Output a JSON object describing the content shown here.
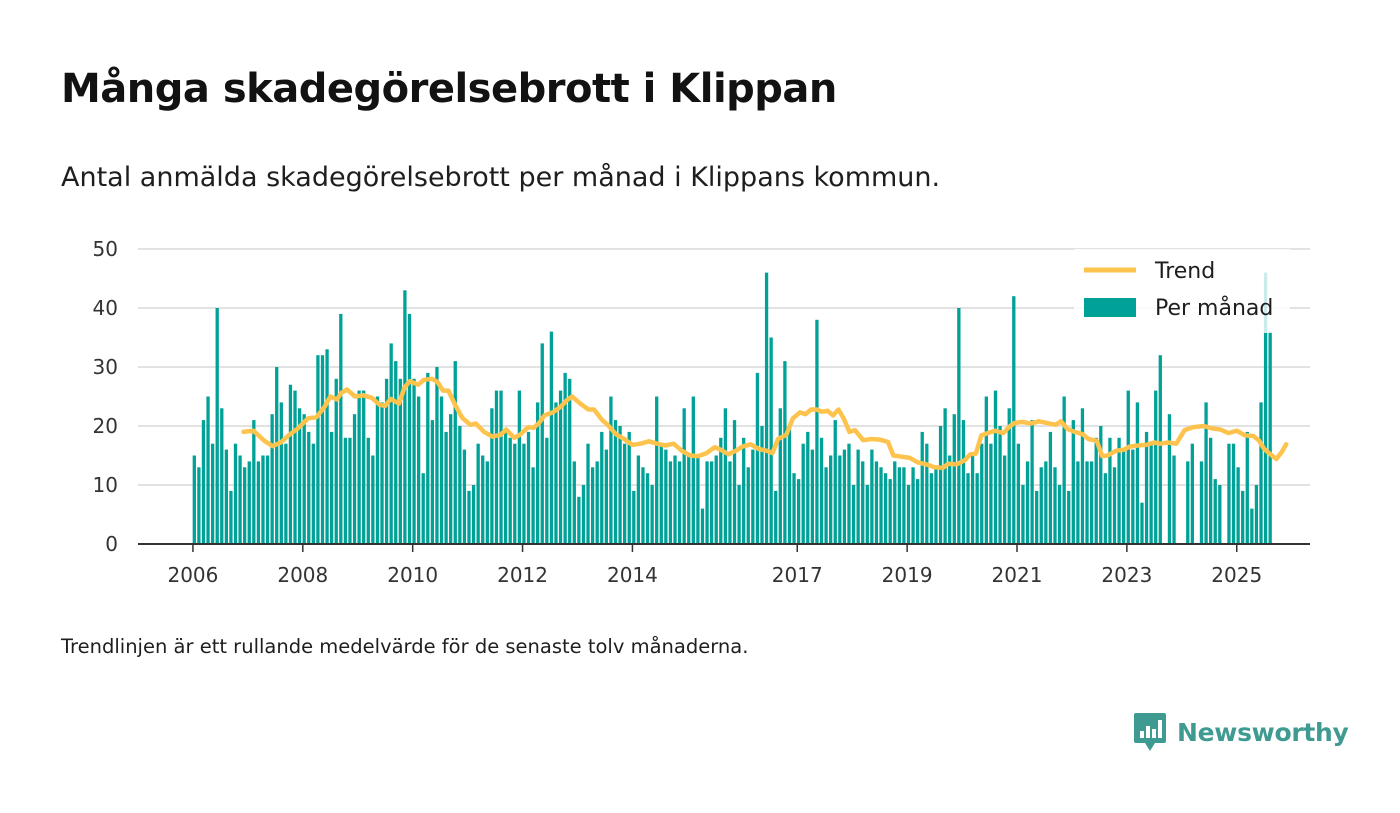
{
  "header": {
    "title": "Många skadegörelsebrott i Klippan",
    "subtitle": "Antal anmälda skadegörelsebrott per månad i Klippans kommun."
  },
  "footnote": "Trendlinjen är ett rullande medelvärde för de senaste tolv månaderna.",
  "brand": {
    "name": "Newsworthy",
    "color": "#3f9b92"
  },
  "chart_data": {
    "type": "bar",
    "colors": {
      "bars": "#00a197",
      "trend": "#fdc34d",
      "grid": "#d9d9d9",
      "axis": "#333333"
    },
    "ylim": [
      0,
      50
    ],
    "y_ticks": [
      "0",
      "10",
      "20",
      "30",
      "40",
      "50"
    ],
    "x_ticks": [
      {
        "label": "2006",
        "year": 2006
      },
      {
        "label": "2008",
        "year": 2008
      },
      {
        "label": "2010",
        "year": 2010
      },
      {
        "label": "2012",
        "year": 2012
      },
      {
        "label": "2014",
        "year": 2014
      },
      {
        "label": "2017",
        "year": 2017
      },
      {
        "label": "2019",
        "year": 2019
      },
      {
        "label": "2021",
        "year": 2021
      },
      {
        "label": "2023",
        "year": 2023
      },
      {
        "label": "2025",
        "year": 2025
      }
    ],
    "xlim": [
      "2005-01",
      "2026-05"
    ],
    "start": "2006-01",
    "legend": {
      "position": "top-right",
      "trend_label": "Trend",
      "bars_label": "Per månad"
    },
    "bars": [
      15,
      13,
      21,
      25,
      17,
      40,
      23,
      16,
      9,
      17,
      15,
      13,
      14,
      21,
      14,
      15,
      15,
      22,
      30,
      24,
      17,
      27,
      26,
      23,
      22,
      19,
      17,
      32,
      32,
      33,
      19,
      28,
      39,
      18,
      18,
      22,
      26,
      26,
      18,
      15,
      25,
      24,
      28,
      34,
      31,
      28,
      43,
      39,
      28,
      25,
      12,
      29,
      21,
      30,
      25,
      19,
      22,
      31,
      20,
      16,
      9,
      10,
      17,
      15,
      14,
      23,
      26,
      26,
      19,
      18,
      17,
      26,
      17,
      19,
      13,
      24,
      34,
      18,
      36,
      24,
      26,
      29,
      28,
      14,
      8,
      10,
      17,
      13,
      14,
      19,
      16,
      25,
      21,
      20,
      17,
      19,
      9,
      15,
      13,
      12,
      10,
      25,
      17,
      16,
      14,
      15,
      14,
      23,
      15,
      25,
      15,
      6,
      14,
      14,
      15,
      18,
      23,
      14,
      21,
      10,
      18,
      13,
      16,
      29,
      20,
      46,
      35,
      9,
      23,
      31,
      20,
      12,
      11,
      17,
      19,
      16,
      38,
      18,
      13,
      15,
      21,
      15,
      16,
      17,
      10,
      16,
      14,
      10,
      16,
      14,
      13,
      12,
      11,
      14,
      13,
      13,
      10,
      13,
      11,
      19,
      17,
      12,
      13,
      20,
      23,
      15,
      22,
      40,
      21,
      12,
      15,
      12,
      17,
      25,
      17,
      26,
      20,
      15,
      23,
      42,
      17,
      10,
      14,
      21,
      9,
      13,
      14,
      19,
      13,
      10,
      25,
      9,
      21,
      14,
      23,
      14,
      14,
      18,
      20,
      12,
      18,
      13,
      18,
      16,
      26,
      16,
      24,
      7,
      19,
      17,
      26,
      32,
      0,
      22,
      15,
      0,
      0,
      14,
      17,
      0,
      14,
      24,
      18,
      11,
      10,
      0,
      17,
      17,
      13,
      9,
      19,
      6,
      10,
      24,
      46,
      36
    ],
    "trend": [
      [
        2006.92,
        19
      ],
      [
        2007.1,
        19.2
      ],
      [
        2007.3,
        17.5
      ],
      [
        2007.45,
        16.6
      ],
      [
        2007.6,
        17.2
      ],
      [
        2007.75,
        18.5
      ],
      [
        2007.9,
        19.5
      ],
      [
        2008.1,
        21.3
      ],
      [
        2008.25,
        21.5
      ],
      [
        2008.4,
        23.3
      ],
      [
        2008.5,
        25
      ],
      [
        2008.62,
        24.5
      ],
      [
        2008.7,
        25.6
      ],
      [
        2008.8,
        26.2
      ],
      [
        2008.95,
        25
      ],
      [
        2009.1,
        25.2
      ],
      [
        2009.25,
        24.8
      ],
      [
        2009.4,
        23.6
      ],
      [
        2009.5,
        23.4
      ],
      [
        2009.6,
        24.6
      ],
      [
        2009.75,
        23.8
      ],
      [
        2009.85,
        26.5
      ],
      [
        2009.95,
        27.6
      ],
      [
        2010.1,
        27
      ],
      [
        2010.2,
        27.8
      ],
      [
        2010.35,
        28
      ],
      [
        2010.45,
        27.5
      ],
      [
        2010.55,
        26
      ],
      [
        2010.65,
        26
      ],
      [
        2010.75,
        24
      ],
      [
        2010.9,
        21.4
      ],
      [
        2011.05,
        20.2
      ],
      [
        2011.15,
        20.4
      ],
      [
        2011.3,
        19
      ],
      [
        2011.45,
        18.2
      ],
      [
        2011.6,
        18.5
      ],
      [
        2011.7,
        19.4
      ],
      [
        2011.85,
        18
      ],
      [
        2011.95,
        18.5
      ],
      [
        2012.1,
        19.8
      ],
      [
        2012.2,
        19.7
      ],
      [
        2012.3,
        20.5
      ],
      [
        2012.4,
        21.8
      ],
      [
        2012.55,
        22.3
      ],
      [
        2012.7,
        23.3
      ],
      [
        2012.8,
        24.3
      ],
      [
        2012.9,
        25
      ],
      [
        2013.05,
        23.8
      ],
      [
        2013.2,
        22.8
      ],
      [
        2013.3,
        22.8
      ],
      [
        2013.45,
        21
      ],
      [
        2013.55,
        20.2
      ],
      [
        2013.7,
        18.6
      ],
      [
        2013.85,
        17.8
      ],
      [
        2014.0,
        16.8
      ],
      [
        2014.15,
        17
      ],
      [
        2014.3,
        17.4
      ],
      [
        2014.45,
        17
      ],
      [
        2014.6,
        16.7
      ],
      [
        2014.75,
        17
      ],
      [
        2014.9,
        15.8
      ],
      [
        2015.05,
        15
      ],
      [
        2015.2,
        14.9
      ],
      [
        2015.35,
        15.4
      ],
      [
        2015.5,
        16.4
      ],
      [
        2015.6,
        16
      ],
      [
        2015.75,
        15.2
      ],
      [
        2015.9,
        15.9
      ],
      [
        2016.0,
        16.5
      ],
      [
        2016.15,
        16.9
      ],
      [
        2016.3,
        16.1
      ],
      [
        2016.45,
        15.8
      ],
      [
        2016.55,
        15.4
      ],
      [
        2016.65,
        17.8
      ],
      [
        2016.8,
        18.5
      ],
      [
        2016.92,
        21.3
      ],
      [
        2017.05,
        22.3
      ],
      [
        2017.15,
        22
      ],
      [
        2017.25,
        22.8
      ],
      [
        2017.35,
        22.8
      ],
      [
        2017.45,
        22.4
      ],
      [
        2017.55,
        22.6
      ],
      [
        2017.65,
        21.8
      ],
      [
        2017.75,
        22.8
      ],
      [
        2017.85,
        21.2
      ],
      [
        2017.95,
        19
      ],
      [
        2018.05,
        19.3
      ],
      [
        2018.2,
        17.6
      ],
      [
        2018.35,
        17.8
      ],
      [
        2018.5,
        17.7
      ],
      [
        2018.65,
        17.3
      ],
      [
        2018.75,
        15
      ],
      [
        2018.9,
        14.8
      ],
      [
        2019.05,
        14.6
      ],
      [
        2019.2,
        13.8
      ],
      [
        2019.35,
        13.5
      ],
      [
        2019.5,
        13
      ],
      [
        2019.65,
        12.9
      ],
      [
        2019.75,
        13.6
      ],
      [
        2019.9,
        13.5
      ],
      [
        2020.05,
        14.2
      ],
      [
        2020.15,
        15.2
      ],
      [
        2020.25,
        15.3
      ],
      [
        2020.35,
        18.4
      ],
      [
        2020.5,
        18.9
      ],
      [
        2020.6,
        19.2
      ],
      [
        2020.75,
        18.8
      ],
      [
        2020.85,
        19.8
      ],
      [
        2020.95,
        20.5
      ],
      [
        2021.1,
        20.7
      ],
      [
        2021.25,
        20.4
      ],
      [
        2021.4,
        20.8
      ],
      [
        2021.55,
        20.5
      ],
      [
        2021.7,
        20.2
      ],
      [
        2021.8,
        20.8
      ],
      [
        2021.92,
        19.5
      ],
      [
        2022.05,
        19
      ],
      [
        2022.2,
        18.6
      ],
      [
        2022.3,
        17.8
      ],
      [
        2022.45,
        17.5
      ],
      [
        2022.55,
        14.9
      ],
      [
        2022.65,
        15
      ],
      [
        2022.8,
        15.8
      ],
      [
        2022.95,
        16
      ],
      [
        2023.05,
        16.5
      ],
      [
        2023.2,
        16.7
      ],
      [
        2023.35,
        16.8
      ],
      [
        2023.5,
        17.2
      ],
      [
        2023.6,
        17
      ],
      [
        2023.75,
        17.2
      ],
      [
        2023.9,
        17
      ],
      [
        2024.05,
        19.3
      ],
      [
        2024.2,
        19.8
      ],
      [
        2024.4,
        20
      ],
      [
        2024.55,
        19.6
      ],
      [
        2024.7,
        19.4
      ],
      [
        2024.85,
        18.8
      ],
      [
        2025.0,
        19.2
      ],
      [
        2025.15,
        18.4
      ],
      [
        2025.3,
        18.3
      ],
      [
        2025.4,
        17.6
      ],
      [
        2025.5,
        16.1
      ],
      [
        2025.6,
        15.3
      ],
      [
        2025.72,
        14.4
      ],
      [
        2025.82,
        15.6
      ],
      [
        2025.9,
        16.9
      ]
    ]
  }
}
